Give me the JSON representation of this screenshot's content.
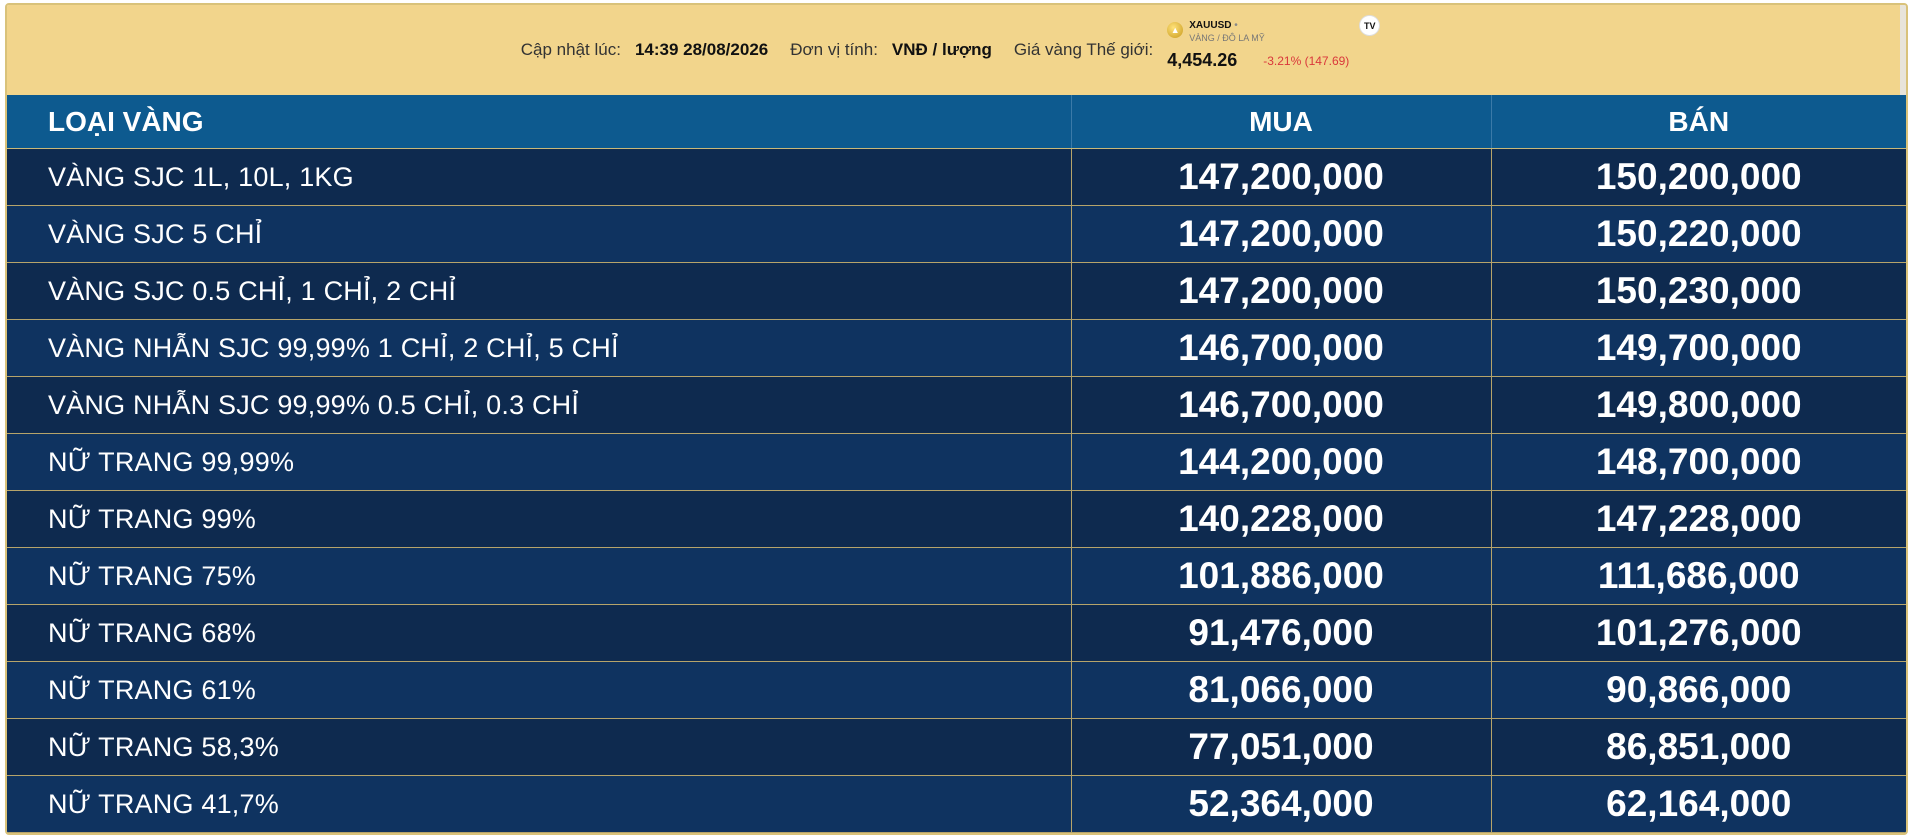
{
  "header": {
    "updated_label": "Cập nhật lúc:",
    "updated_value": "14:39 28/08/2026",
    "unit_label": "Đơn vị tính:",
    "unit_value": "VNĐ / lượng",
    "world_label": "Giá vàng Thế giới:"
  },
  "widget": {
    "symbol": "XAUUSD",
    "subtitle": "VÀNG / ĐÔ LA MỸ",
    "price": "4,454.26",
    "change": "-3.21% (147.69)",
    "logo": "TV",
    "change_color": "#d9373b"
  },
  "table": {
    "columns": [
      "LOẠI VÀNG",
      "MUA",
      "BÁN"
    ],
    "rows": [
      {
        "name": "VÀNG SJC 1L, 10L, 1KG",
        "buy": "147,200,000",
        "sell": "150,200,000"
      },
      {
        "name": "VÀNG SJC 5 CHỈ",
        "buy": "147,200,000",
        "sell": "150,220,000"
      },
      {
        "name": "VÀNG SJC 0.5 CHỈ, 1 CHỈ, 2 CHỈ",
        "buy": "147,200,000",
        "sell": "150,230,000"
      },
      {
        "name": "VÀNG NHẪN SJC 99,99% 1 CHỈ, 2 CHỈ, 5 CHỈ",
        "buy": "146,700,000",
        "sell": "149,700,000"
      },
      {
        "name": "VÀNG NHẪN SJC 99,99% 0.5 CHỈ, 0.3 CHỈ",
        "buy": "146,700,000",
        "sell": "149,800,000"
      },
      {
        "name": "NỮ TRANG 99,99%",
        "buy": "144,200,000",
        "sell": "148,700,000"
      },
      {
        "name": "NỮ TRANG 99%",
        "buy": "140,228,000",
        "sell": "147,228,000"
      },
      {
        "name": "NỮ TRANG 75%",
        "buy": "101,886,000",
        "sell": "111,686,000"
      },
      {
        "name": "NỮ TRANG 68%",
        "buy": "91,476,000",
        "sell": "101,276,000"
      },
      {
        "name": "NỮ TRANG 61%",
        "buy": "81,066,000",
        "sell": "90,866,000"
      },
      {
        "name": "NỮ TRANG 58,3%",
        "buy": "77,051,000",
        "sell": "86,851,000"
      },
      {
        "name": "NỮ TRANG 41,7%",
        "buy": "52,364,000",
        "sell": "62,164,000"
      }
    ]
  },
  "colors": {
    "topbar_bg": "#f2d58c",
    "header_bg": "#0d5a8f",
    "row_odd": "#0e2a4f",
    "row_even": "#0f3360",
    "border": "#b6a46a"
  },
  "icons": {
    "coin": "gold-coin-icon",
    "tradingview": "tradingview-logo-icon"
  }
}
